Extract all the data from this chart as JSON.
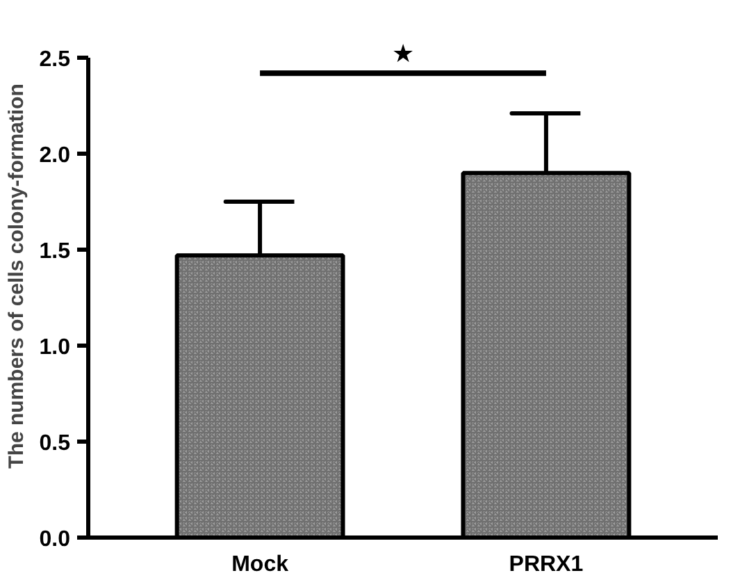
{
  "chart_data": {
    "type": "bar",
    "ylabel": "The numbers of cells colony-formation",
    "categories": [
      "Mock",
      "PRRX1"
    ],
    "values": [
      1.47,
      1.9
    ],
    "errors": [
      [
        1.47,
        1.75
      ],
      [
        1.9,
        2.21
      ]
    ],
    "color": "#9c9c9c",
    "ylim": [
      0,
      2.5
    ],
    "yticks": [
      {
        "value": 0,
        "label": "0.0"
      },
      {
        "value": 0.5,
        "label": "0.5"
      },
      {
        "value": 1,
        "label": "1.0"
      },
      {
        "value": 1.5,
        "label": "1.5"
      },
      {
        "value": 2,
        "label": "2.0"
      },
      {
        "value": 2.5,
        "label": "2.5"
      }
    ],
    "ref_lines": [
      {
        "axis": "y",
        "value": 2.42,
        "label": "★"
      }
    ],
    "grid": false
  }
}
